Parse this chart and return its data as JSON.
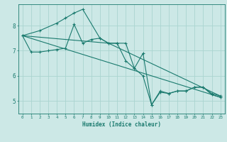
{
  "title": "",
  "xlabel": "Humidex (Indice chaleur)",
  "ylabel": "",
  "bg_color": "#cce8e6",
  "line_color": "#1a7a6e",
  "grid_color": "#aad4d0",
  "xlim": [
    -0.5,
    23.5
  ],
  "ylim": [
    4.5,
    8.85
  ],
  "xticks": [
    0,
    1,
    2,
    3,
    4,
    5,
    6,
    7,
    8,
    9,
    10,
    11,
    12,
    13,
    14,
    15,
    16,
    17,
    18,
    19,
    20,
    21,
    22,
    23
  ],
  "yticks": [
    5,
    6,
    7,
    8
  ],
  "series": [
    {
      "x": [
        0,
        2,
        4,
        5,
        6,
        7,
        9,
        10,
        11,
        12,
        13,
        14,
        15,
        16,
        17,
        18,
        19,
        20,
        21,
        22,
        23
      ],
      "y": [
        7.6,
        7.8,
        8.1,
        8.3,
        8.5,
        8.65,
        7.5,
        7.3,
        7.3,
        6.6,
        6.3,
        6.9,
        4.85,
        5.4,
        5.3,
        5.4,
        5.4,
        5.55,
        5.55,
        5.3,
        5.2
      ],
      "has_markers": true
    },
    {
      "x": [
        0,
        1,
        2,
        3,
        4,
        5,
        6,
        7,
        8,
        9,
        10,
        11,
        12,
        13,
        14,
        15,
        16,
        17,
        18,
        19,
        20,
        21,
        22,
        23
      ],
      "y": [
        7.6,
        6.95,
        6.95,
        7.0,
        7.05,
        7.1,
        8.05,
        7.3,
        7.45,
        7.5,
        7.3,
        7.3,
        7.3,
        6.3,
        6.0,
        4.85,
        5.35,
        5.3,
        5.4,
        5.4,
        5.55,
        5.55,
        5.25,
        5.15
      ],
      "has_markers": true
    },
    {
      "x": [
        0,
        23
      ],
      "y": [
        7.6,
        5.15
      ],
      "has_markers": false
    },
    {
      "x": [
        0,
        10,
        23
      ],
      "y": [
        7.6,
        7.3,
        5.2
      ],
      "has_markers": false
    }
  ]
}
